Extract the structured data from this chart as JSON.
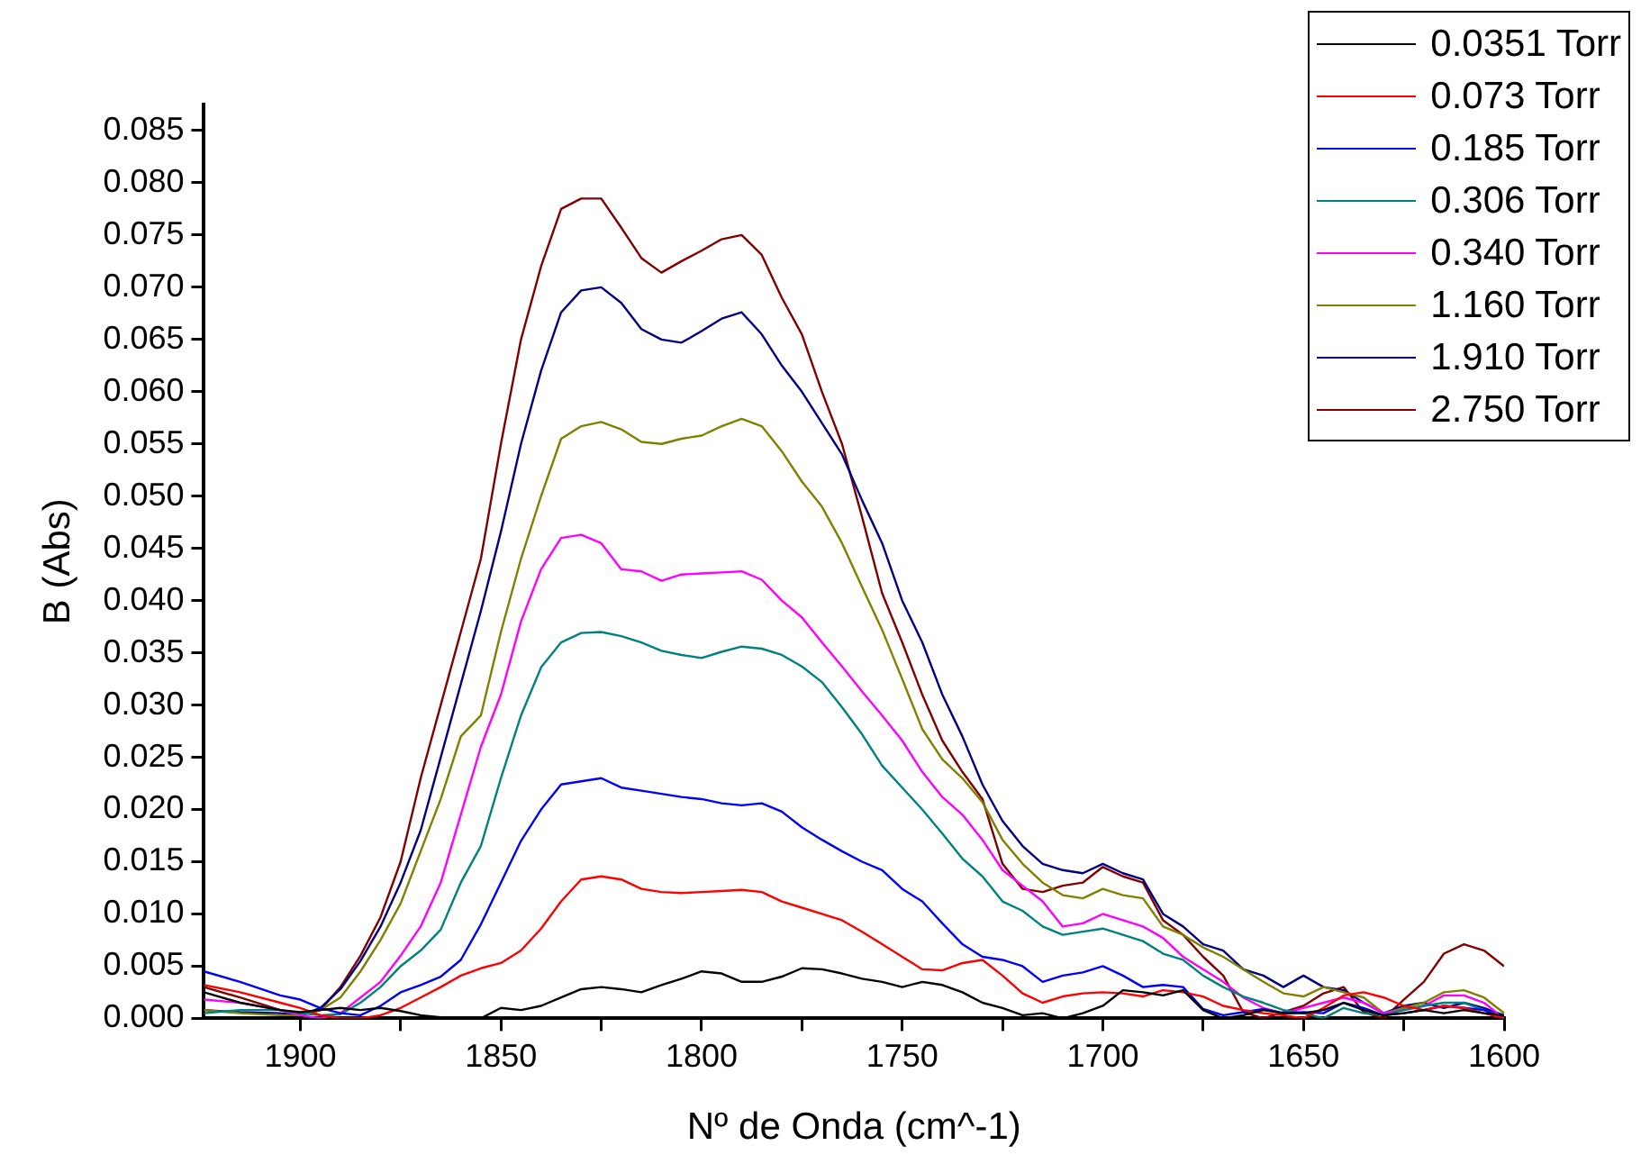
{
  "chart_data": {
    "type": "line",
    "xlabel": "Nº de Onda (cm^-1)",
    "ylabel": "B (Abs)",
    "x": [
      1924,
      1915,
      1905,
      1900,
      1895,
      1890,
      1885,
      1880,
      1875,
      1870,
      1865,
      1860,
      1855,
      1850,
      1845,
      1840,
      1835,
      1830,
      1825,
      1820,
      1815,
      1810,
      1805,
      1800,
      1795,
      1790,
      1785,
      1780,
      1775,
      1770,
      1765,
      1760,
      1755,
      1750,
      1745,
      1740,
      1735,
      1730,
      1725,
      1720,
      1715,
      1710,
      1705,
      1700,
      1695,
      1690,
      1685,
      1680,
      1675,
      1670,
      1665,
      1660,
      1655,
      1650,
      1645,
      1640,
      1635,
      1630,
      1625,
      1620,
      1615,
      1610,
      1605,
      1600
    ],
    "series": [
      {
        "name": "0.0351 Torr",
        "color": "#000000",
        "values": [
          0.0025,
          0.0015,
          0.0008,
          0.0006,
          0.0008,
          0.001,
          0.0008,
          0.001,
          0.0007,
          0.0003,
          0.0001,
          0,
          0,
          0.001,
          0.0008,
          0.0012,
          0.002,
          0.0028,
          0.003,
          0.0028,
          0.0025,
          0.0032,
          0.0038,
          0.0045,
          0.0043,
          0.0035,
          0.0035,
          0.004,
          0.0048,
          0.0047,
          0.0043,
          0.0038,
          0.0035,
          0.003,
          0.0035,
          0.0032,
          0.0025,
          0.0015,
          0.001,
          0.0003,
          0.0005,
          0,
          0.0005,
          0.0012,
          0.0027,
          0.0025,
          0.0022,
          0.0027,
          0.0008,
          0,
          0.0003,
          0.0008,
          0.0005,
          0.0005,
          0.0008,
          0.0015,
          0.0008,
          0.0003,
          0.0005,
          0.0008,
          0.0005,
          0.0008,
          0.0005,
          0.0003
        ]
      },
      {
        "name": "0.073 Torr",
        "color": "#ff0000",
        "values": [
          0.0032,
          0.0025,
          0.0015,
          0.001,
          0.0003,
          0,
          0,
          0.0003,
          0.001,
          0.002,
          0.003,
          0.0041,
          0.0048,
          0.0053,
          0.0065,
          0.0086,
          0.0112,
          0.0133,
          0.0136,
          0.0133,
          0.0124,
          0.0121,
          0.012,
          0.0121,
          0.0122,
          0.0123,
          0.0121,
          0.0112,
          0.0106,
          0.01,
          0.0094,
          0.0083,
          0.0071,
          0.0059,
          0.0047,
          0.0046,
          0.0053,
          0.0056,
          0.0041,
          0.0024,
          0.0015,
          0.0021,
          0.0024,
          0.0025,
          0.0024,
          0.0021,
          0.0027,
          0.0025,
          0.0021,
          0.0012,
          0.0008,
          0.0005,
          0.0003,
          0,
          0.001,
          0.0022,
          0.0025,
          0.002,
          0.0012,
          0.0008,
          0.0012,
          0.001,
          0.0005,
          0
        ]
      },
      {
        "name": "0.185 Torr",
        "color": "#0000ff",
        "values": [
          0.0045,
          0.0035,
          0.0022,
          0.0018,
          0.001,
          0.0005,
          0.0003,
          0.0012,
          0.0025,
          0.0032,
          0.004,
          0.0056,
          0.009,
          0.013,
          0.017,
          0.02,
          0.0224,
          0.0227,
          0.023,
          0.0221,
          0.0218,
          0.0215,
          0.0212,
          0.021,
          0.0206,
          0.0204,
          0.0206,
          0.0198,
          0.0183,
          0.0171,
          0.016,
          0.015,
          0.0142,
          0.0124,
          0.0112,
          0.0091,
          0.0071,
          0.0059,
          0.0056,
          0.005,
          0.0035,
          0.0041,
          0.0044,
          0.005,
          0.0041,
          0.003,
          0.0032,
          0.003,
          0.0009,
          0.0003,
          0.0006,
          0.0009,
          0.0005,
          0.0006,
          0.0005,
          0.0015,
          0.001,
          0.0003,
          0.0005,
          0.0008,
          0.0012,
          0.001,
          0.0008,
          0
        ]
      },
      {
        "name": "0.306 Torr",
        "color": "#008080",
        "values": [
          0.0005,
          0.0008,
          0.0008,
          0.0005,
          0.0003,
          0.0004,
          0.0015,
          0.003,
          0.005,
          0.0065,
          0.0085,
          0.013,
          0.0165,
          0.023,
          0.029,
          0.0336,
          0.036,
          0.0369,
          0.037,
          0.0366,
          0.036,
          0.0352,
          0.0348,
          0.0345,
          0.0351,
          0.0356,
          0.0354,
          0.0348,
          0.0337,
          0.0322,
          0.0298,
          0.0272,
          0.0242,
          0.0221,
          0.02,
          0.0177,
          0.0153,
          0.0136,
          0.0112,
          0.0103,
          0.0088,
          0.008,
          0.0083,
          0.0086,
          0.008,
          0.0074,
          0.0062,
          0.0056,
          0.0041,
          0.003,
          0.0021,
          0.0015,
          0.0008,
          0.0005,
          0,
          0.001,
          0.0005,
          0.0003,
          0.0008,
          0.0012,
          0.0015,
          0.0015,
          0.0008,
          0
        ]
      },
      {
        "name": "0.340 Torr",
        "color": "#ff00ff",
        "values": [
          0.0018,
          0.0015,
          0.0008,
          0.0003,
          0,
          0.0005,
          0.002,
          0.0035,
          0.006,
          0.0088,
          0.013,
          0.0195,
          0.026,
          0.031,
          0.038,
          0.043,
          0.046,
          0.0463,
          0.0455,
          0.043,
          0.0428,
          0.0419,
          0.0425,
          0.0426,
          0.0427,
          0.0428,
          0.042,
          0.04,
          0.0384,
          0.036,
          0.0337,
          0.0313,
          0.029,
          0.0266,
          0.0236,
          0.0212,
          0.0195,
          0.0171,
          0.0142,
          0.0127,
          0.0112,
          0.0088,
          0.0091,
          0.01,
          0.0094,
          0.0088,
          0.0077,
          0.0059,
          0.0047,
          0.0035,
          0.002,
          0.001,
          0.0005,
          0.001,
          0.0015,
          0.002,
          0.0015,
          0.0005,
          0.0008,
          0.0012,
          0.0022,
          0.0022,
          0.0015,
          0
        ]
      },
      {
        "name": "1.160 Torr",
        "color": "#808000",
        "values": [
          0.0008,
          0.0005,
          0.0003,
          0.0003,
          0.0008,
          0.002,
          0.0045,
          0.0075,
          0.011,
          0.016,
          0.021,
          0.027,
          0.029,
          0.037,
          0.044,
          0.05,
          0.0555,
          0.0567,
          0.0571,
          0.0564,
          0.0552,
          0.055,
          0.0555,
          0.0558,
          0.0567,
          0.0574,
          0.0567,
          0.0543,
          0.0514,
          0.049,
          0.0455,
          0.0413,
          0.0372,
          0.0325,
          0.0277,
          0.0248,
          0.023,
          0.0207,
          0.0171,
          0.0148,
          0.013,
          0.0118,
          0.0115,
          0.0124,
          0.0118,
          0.0115,
          0.0088,
          0.008,
          0.0068,
          0.0059,
          0.0047,
          0.0035,
          0.0024,
          0.0021,
          0.003,
          0.0025,
          0.002,
          0.0005,
          0.001,
          0.0015,
          0.0025,
          0.0027,
          0.002,
          0.0005
        ]
      },
      {
        "name": "1.910 Torr",
        "color": "#000080",
        "values": [
          0.0008,
          0.0006,
          0.0005,
          0.0003,
          0.001,
          0.0028,
          0.0055,
          0.0088,
          0.013,
          0.018,
          0.025,
          0.032,
          0.039,
          0.0466,
          0.055,
          0.062,
          0.0676,
          0.0697,
          0.07,
          0.0685,
          0.066,
          0.065,
          0.0647,
          0.0658,
          0.067,
          0.0676,
          0.0655,
          0.0625,
          0.06,
          0.057,
          0.054,
          0.0496,
          0.0455,
          0.04,
          0.036,
          0.031,
          0.027,
          0.0224,
          0.0189,
          0.0165,
          0.0148,
          0.0142,
          0.0139,
          0.0148,
          0.0139,
          0.0133,
          0.01,
          0.0088,
          0.0071,
          0.0065,
          0.0047,
          0.0041,
          0.003,
          0.0041,
          0.003,
          0.0027,
          0.0015,
          0.0005,
          0.0012,
          0.0015,
          0.001,
          0.0015,
          0.001,
          0.0003
        ]
      },
      {
        "name": "2.750 Torr",
        "color": "#800000",
        "values": [
          0.003,
          0.002,
          0.0008,
          0.0003,
          0.0008,
          0.003,
          0.006,
          0.0097,
          0.015,
          0.023,
          0.03,
          0.037,
          0.044,
          0.055,
          0.065,
          0.072,
          0.0775,
          0.0785,
          0.0785,
          0.0757,
          0.0728,
          0.0714,
          0.0725,
          0.0735,
          0.0746,
          0.075,
          0.0731,
          0.069,
          0.0655,
          0.06,
          0.055,
          0.048,
          0.0407,
          0.036,
          0.031,
          0.0266,
          0.0236,
          0.021,
          0.0148,
          0.0124,
          0.0121,
          0.0127,
          0.013,
          0.0145,
          0.0136,
          0.013,
          0.0094,
          0.008,
          0.0059,
          0.0041,
          0.0006,
          0,
          0.0006,
          0.0012,
          0.0024,
          0.003,
          0.0006,
          0,
          0.0018,
          0.0035,
          0.0062,
          0.0071,
          0.0065,
          0.005
        ]
      }
    ],
    "xlim": [
      1924,
      1600
    ],
    "xticks": [
      1900,
      1850,
      1800,
      1750,
      1700,
      1650,
      1600,
      {
        "value": 1875,
        "label": null
      },
      {
        "value": 1825,
        "label": null
      },
      {
        "value": 1775,
        "label": null
      },
      {
        "value": 1725,
        "label": null
      },
      {
        "value": 1675,
        "label": null
      },
      {
        "value": 1625,
        "label": null
      }
    ],
    "ylim": [
      0,
      0.0875
    ],
    "yticks": [
      {
        "value": 0,
        "label": "0.000"
      },
      {
        "value": 0.005,
        "label": "0.005"
      },
      {
        "value": 0.01,
        "label": "0.010"
      },
      {
        "value": 0.015,
        "label": "0.015"
      },
      {
        "value": 0.02,
        "label": "0.020"
      },
      {
        "value": 0.025,
        "label": "0.025"
      },
      {
        "value": 0.03,
        "label": "0.030"
      },
      {
        "value": 0.035,
        "label": "0.035"
      },
      {
        "value": 0.04,
        "label": "0.040"
      },
      {
        "value": 0.045,
        "label": "0.045"
      },
      {
        "value": 0.05,
        "label": "0.050"
      },
      {
        "value": 0.055,
        "label": "0.055"
      },
      {
        "value": 0.06,
        "label": "0.060"
      },
      {
        "value": 0.065,
        "label": "0.065"
      },
      {
        "value": 0.07,
        "label": "0.070"
      },
      {
        "value": 0.075,
        "label": "0.075"
      },
      {
        "value": 0.08,
        "label": "0.080"
      },
      {
        "value": 0.085,
        "label": "0.085"
      }
    ],
    "grid": false,
    "legend": "top right",
    "marker": "none",
    "line_style": "solid"
  }
}
